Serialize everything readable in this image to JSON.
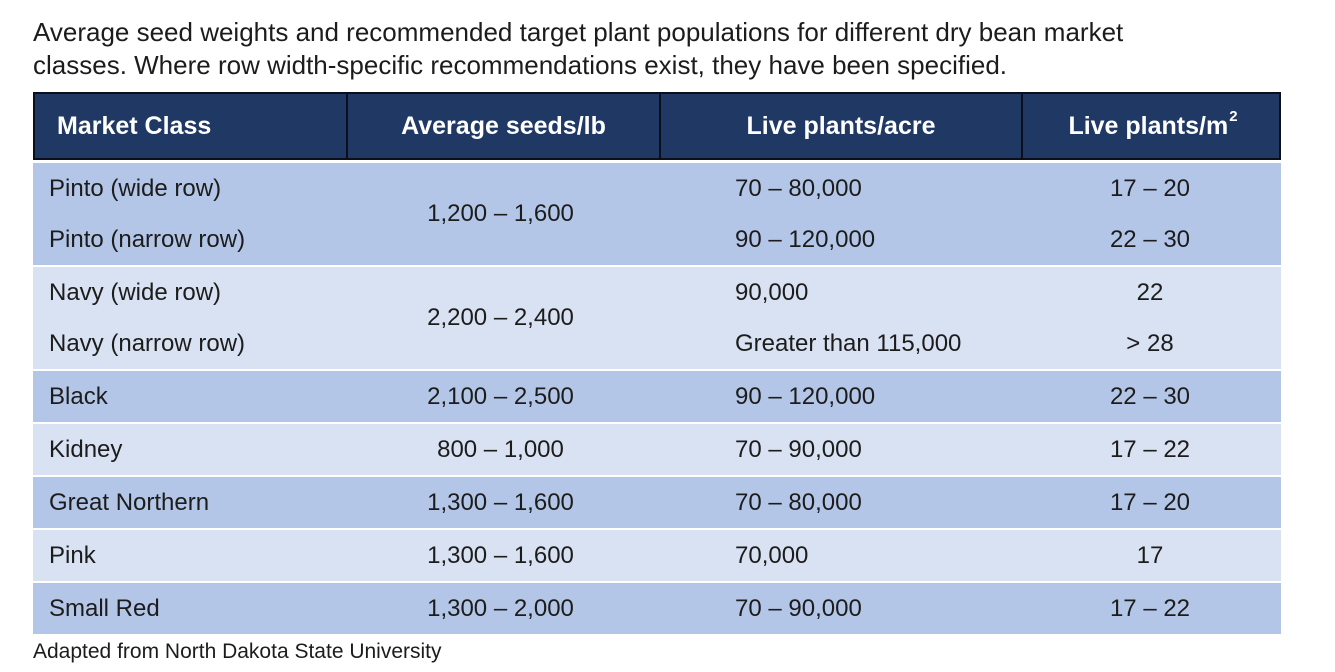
{
  "caption": {
    "line1": "Average seed weights and recommended target plant populations for different dry bean market",
    "line2": "classes. Where row width-specific recommendations exist, they have been specified."
  },
  "table": {
    "columns": [
      {
        "label": "Market Class"
      },
      {
        "label": "Average seeds/lb"
      },
      {
        "label": "Live plants/acre"
      },
      {
        "label": "Live plants/m",
        "superscript": "2"
      }
    ],
    "groups": [
      {
        "shade": "medium",
        "seeds_lb": "1,200 – 1,600",
        "rows": [
          {
            "market_class": "Pinto (wide row)",
            "plants_acre": "70 – 80,000",
            "plants_m2": "17 – 20"
          },
          {
            "market_class": "Pinto (narrow row)",
            "plants_acre": "90 – 120,000",
            "plants_m2": "22 – 30"
          }
        ]
      },
      {
        "shade": "light",
        "seeds_lb": "2,200 – 2,400",
        "rows": [
          {
            "market_class": "Navy (wide row)",
            "plants_acre": "90,000",
            "plants_m2": "22"
          },
          {
            "market_class": "Navy (narrow row)",
            "plants_acre": "Greater than 115,000",
            "plants_m2": "> 28"
          }
        ]
      },
      {
        "shade": "medium",
        "seeds_lb": "2,100 – 2,500",
        "rows": [
          {
            "market_class": "Black",
            "plants_acre": "90 – 120,000",
            "plants_m2": "22 – 30"
          }
        ]
      },
      {
        "shade": "light",
        "seeds_lb": "800 – 1,000",
        "rows": [
          {
            "market_class": "Kidney",
            "plants_acre": "70 – 90,000",
            "plants_m2": "17 – 22"
          }
        ]
      },
      {
        "shade": "medium",
        "seeds_lb": "1,300 – 1,600",
        "rows": [
          {
            "market_class": "Great Northern",
            "plants_acre": "70 – 80,000",
            "plants_m2": "17 – 20"
          }
        ]
      },
      {
        "shade": "light",
        "seeds_lb": "1,300 – 1,600",
        "rows": [
          {
            "market_class": "Pink",
            "plants_acre": "70,000",
            "plants_m2": "17"
          }
        ]
      },
      {
        "shade": "medium",
        "seeds_lb": "1,300 – 2,000",
        "rows": [
          {
            "market_class": "Small Red",
            "plants_acre": "70 – 90,000",
            "plants_m2": "17 – 22"
          }
        ]
      }
    ]
  },
  "footnote": "Adapted from North Dakota State University",
  "colors": {
    "page_bg": "#ffffff",
    "text": "#1c1c1c",
    "header_bg": "#1f3864",
    "header_border": "#0b0f1a",
    "header_text": "#ffffff",
    "row_medium": "#b4c6e7",
    "row_light": "#d9e2f2"
  }
}
